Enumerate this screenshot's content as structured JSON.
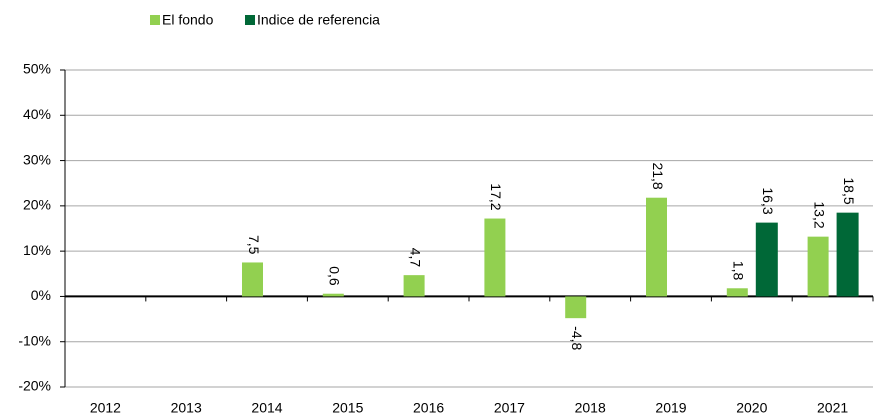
{
  "chart_data": {
    "type": "bar",
    "categories": [
      "2012",
      "2013",
      "2014",
      "2015",
      "2016",
      "2017",
      "2018",
      "2019",
      "2020",
      "2021"
    ],
    "series": [
      {
        "name": "El fondo",
        "color": "#92d050",
        "values": [
          null,
          null,
          7.5,
          0.6,
          4.7,
          17.2,
          -4.8,
          21.8,
          1.8,
          13.2
        ],
        "value_labels": [
          null,
          null,
          "7,5",
          "0,6",
          "4,7",
          "17,2",
          "-4,8",
          "21,8",
          "1,8",
          "13,2"
        ]
      },
      {
        "name": "Indice de referencia",
        "color": "#006837",
        "values": [
          null,
          null,
          null,
          null,
          null,
          null,
          null,
          null,
          16.3,
          18.5
        ],
        "value_labels": [
          null,
          null,
          null,
          null,
          null,
          null,
          null,
          null,
          "16,3",
          "18,5"
        ]
      }
    ],
    "ylim": [
      -20,
      50
    ],
    "yticks": [
      {
        "value": -20,
        "label": "-20%"
      },
      {
        "value": -10,
        "label": "-10%"
      },
      {
        "value": 0,
        "label": "0%"
      },
      {
        "value": 10,
        "label": "10%"
      },
      {
        "value": 20,
        "label": "20%"
      },
      {
        "value": 30,
        "label": "30%"
      },
      {
        "value": 40,
        "label": "40%"
      },
      {
        "value": 50,
        "label": "50%"
      }
    ],
    "grid": true,
    "legend": "top"
  }
}
